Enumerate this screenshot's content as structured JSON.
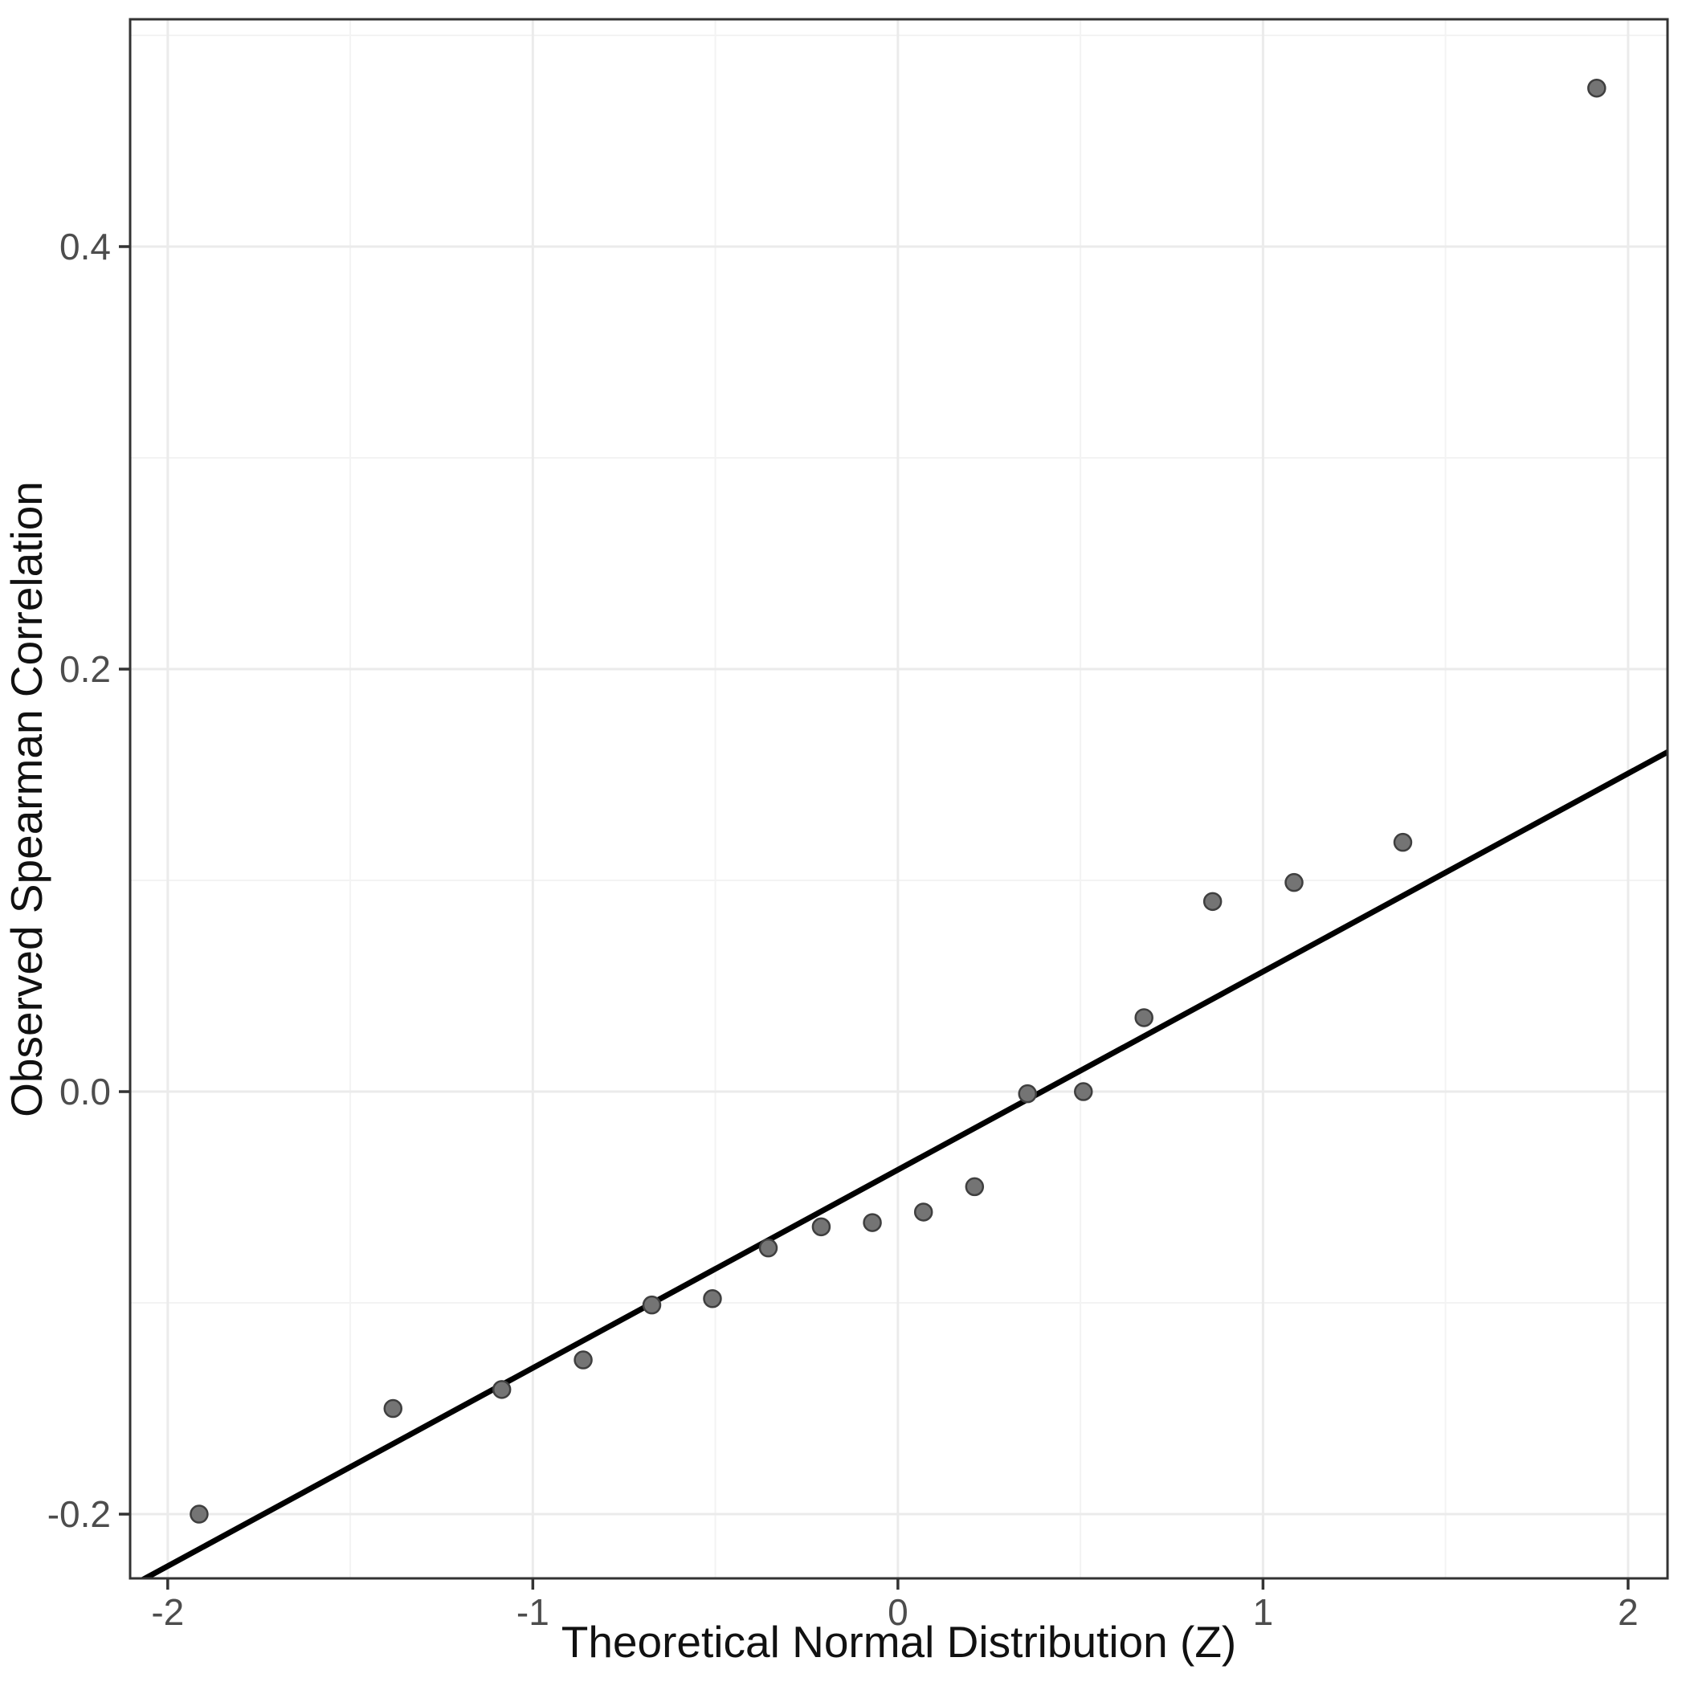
{
  "figure": {
    "kind": "qq-plot",
    "background": "#ffffff"
  },
  "chart_data": {
    "type": "scatter",
    "title": "",
    "xlabel": "Theoretical Normal Distribution (Z)",
    "ylabel": "Observed Spearman Correlation",
    "xlim": [
      -2.103,
      2.108
    ],
    "ylim": [
      -0.2304,
      0.5076
    ],
    "grid": "on",
    "legend": "none",
    "x_ticks": [
      {
        "value": -2,
        "label": "-2"
      },
      {
        "value": -1,
        "label": "-1"
      },
      {
        "value": 0,
        "label": "0"
      },
      {
        "value": 1,
        "label": "1"
      },
      {
        "value": 2,
        "label": "2"
      }
    ],
    "x_minor_ticks": [
      -1.5,
      -0.5,
      0.5,
      1.5
    ],
    "y_ticks": [
      {
        "value": -0.2,
        "label": "-0.2"
      },
      {
        "value": 0.0,
        "label": "0.0"
      },
      {
        "value": 0.2,
        "label": "0.2"
      },
      {
        "value": 0.4,
        "label": "0.4"
      }
    ],
    "y_minor_ticks": [
      -0.1,
      0.1,
      0.3,
      0.5
    ],
    "series": [
      {
        "name": "observed-vs-theoretical-quantiles",
        "points": [
          {
            "x": -1.914,
            "y": -0.2
          },
          {
            "x": -1.383,
            "y": -0.15
          },
          {
            "x": -1.085,
            "y": -0.141
          },
          {
            "x": -0.862,
            "y": -0.127
          },
          {
            "x": -0.674,
            "y": -0.101
          },
          {
            "x": -0.508,
            "y": -0.098
          },
          {
            "x": -0.355,
            "y": -0.074
          },
          {
            "x": -0.21,
            "y": -0.064
          },
          {
            "x": -0.07,
            "y": -0.062
          },
          {
            "x": 0.07,
            "y": -0.057
          },
          {
            "x": 0.21,
            "y": -0.045
          },
          {
            "x": 0.355,
            "y": -0.001
          },
          {
            "x": 0.508,
            "y": 0.0
          },
          {
            "x": 0.674,
            "y": 0.035
          },
          {
            "x": 0.862,
            "y": 0.09
          },
          {
            "x": 1.085,
            "y": 0.099
          },
          {
            "x": 1.383,
            "y": 0.118
          },
          {
            "x": 1.914,
            "y": 0.475
          }
        ]
      }
    ],
    "reference_line": {
      "name": "qq-line",
      "intercept": -0.037,
      "slope": 0.0938
    },
    "colors": {
      "background": "#ffffff",
      "panel_border": "#333333",
      "grid_major": "#ebebeb",
      "grid_minor": "#f3f3f3",
      "point_fill": "#747474",
      "point_stroke": "#3f3f3f",
      "reference_line": "#000000",
      "tick_mark": "#333333",
      "tick_label": "#4d4d4d",
      "axis_title": "#111111"
    },
    "point_radius": 10.5,
    "reference_line_width": 7
  }
}
